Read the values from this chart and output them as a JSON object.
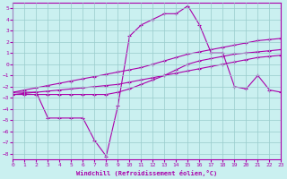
{
  "xlabel": "Windchill (Refroidissement éolien,°C)",
  "xlim": [
    0,
    23
  ],
  "ylim": [
    -8.5,
    5.5
  ],
  "xticks": [
    0,
    1,
    2,
    3,
    4,
    5,
    6,
    7,
    8,
    9,
    10,
    11,
    12,
    13,
    14,
    15,
    16,
    17,
    18,
    19,
    20,
    21,
    22,
    23
  ],
  "yticks": [
    -8,
    -7,
    -6,
    -5,
    -4,
    -3,
    -2,
    -1,
    0,
    1,
    2,
    3,
    4,
    5
  ],
  "background_color": "#caf0f0",
  "line_color": "#aa00aa",
  "grid_color": "#99cccc",
  "lines": [
    {
      "x": [
        0,
        1,
        2,
        3,
        4,
        5,
        6,
        7,
        8,
        9,
        10,
        11,
        12,
        13,
        14,
        15,
        16,
        17,
        18,
        19,
        20,
        21,
        22,
        23
      ],
      "y": [
        -2.5,
        -2.3,
        -2.1,
        -1.9,
        -1.7,
        -1.5,
        -1.3,
        -1.1,
        -0.9,
        -0.7,
        -0.5,
        -0.3,
        -0.0,
        0.3,
        0.6,
        0.9,
        1.1,
        1.3,
        1.5,
        1.7,
        1.9,
        2.1,
        2.2,
        2.3
      ]
    },
    {
      "x": [
        0,
        1,
        2,
        3,
        4,
        5,
        6,
        7,
        8,
        9,
        10,
        11,
        12,
        13,
        14,
        15,
        16,
        17,
        18,
        19,
        20,
        21,
        22,
        23
      ],
      "y": [
        -2.7,
        -2.6,
        -2.5,
        -2.4,
        -2.3,
        -2.2,
        -2.1,
        -2.0,
        -1.9,
        -1.8,
        -1.6,
        -1.4,
        -1.2,
        -1.0,
        -0.8,
        -0.6,
        -0.4,
        -0.2,
        0.0,
        0.2,
        0.4,
        0.6,
        0.7,
        0.8
      ]
    },
    {
      "x": [
        0,
        1,
        2,
        3,
        4,
        5,
        6,
        7,
        8,
        9,
        10,
        11,
        12,
        13,
        14,
        15,
        16,
        17,
        18,
        19,
        20,
        21,
        22,
        23
      ],
      "y": [
        -2.7,
        -2.7,
        -2.7,
        -2.7,
        -2.7,
        -2.7,
        -2.7,
        -2.7,
        -2.7,
        -2.5,
        -2.2,
        -1.8,
        -1.4,
        -1.0,
        -0.5,
        0.0,
        0.3,
        0.5,
        0.7,
        0.9,
        1.0,
        1.1,
        1.2,
        1.3
      ]
    },
    {
      "x": [
        0,
        1,
        2,
        3,
        4,
        5,
        6,
        7,
        8,
        9,
        10,
        11,
        12,
        13,
        14,
        15,
        16,
        17,
        18,
        19,
        20,
        21,
        22,
        23
      ],
      "y": [
        -2.5,
        -2.5,
        -2.5,
        -4.8,
        -4.8,
        -4.8,
        -4.8,
        -6.8,
        -8.2,
        -3.7,
        2.5,
        3.5,
        4.0,
        4.5,
        4.5,
        5.2,
        3.5,
        1.0,
        1.0,
        -2.0,
        -2.2,
        -1.0,
        -2.3,
        -2.5
      ]
    }
  ]
}
